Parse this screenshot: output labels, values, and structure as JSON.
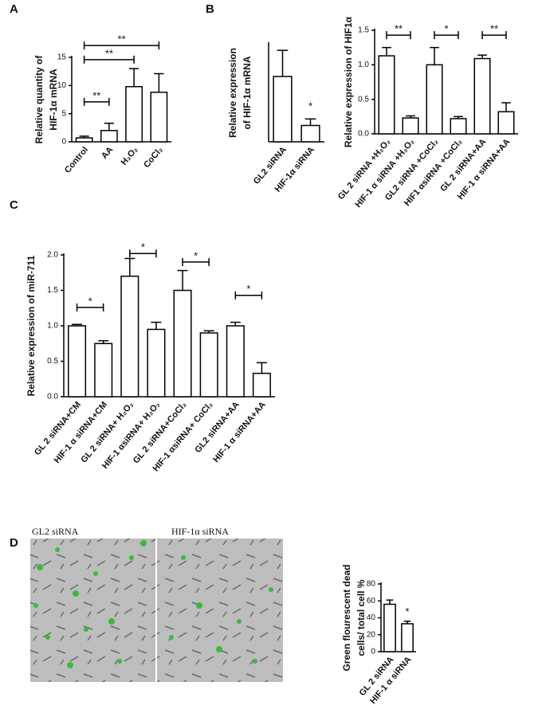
{
  "chart_data": [
    {
      "type": "bar",
      "label": "A",
      "ylabel": [
        "Relative quantity of",
        "HIF-1α mRNA"
      ],
      "categories": [
        "Control",
        "AA",
        "H₂O₂",
        "CoCl₂"
      ],
      "values": [
        0.7,
        2,
        9.8,
        8.8
      ],
      "errors": [
        0.3,
        1.3,
        3.2,
        3.3
      ],
      "color": "#ffffff",
      "ylim": [
        0,
        15
      ],
      "yticks": [
        0,
        5,
        10,
        15
      ],
      "annotations": [
        {
          "text": "**"
        },
        {
          "text": "**"
        },
        {
          "text": "**"
        }
      ]
    },
    {
      "type": "bar",
      "label": "B",
      "ylabel": [
        "Relative expression",
        "of HIF-1α mRNA"
      ],
      "categories": [
        "GL2 siRNA",
        "HIF-1α siRNA"
      ],
      "values": [
        1.0,
        0.25
      ],
      "errors": [
        0.4,
        0.1
      ],
      "color": "#ffffff",
      "ylim": [
        0,
        1.5
      ],
      "annotations": [
        {
          "text": "*"
        }
      ]
    },
    {
      "type": "bar",
      "ylabel": [
        "Relative  expression of HIF1α"
      ],
      "categories": [
        "GL 2 siRNA +H₂O₂",
        "HIF-1 α siRNA +H₂O₂",
        "GL2 siRNA +CoCl₂",
        "HIF1 αsiRNA +CoCl₂",
        "GL 2 siRNA+AA",
        "HIF-1 α siRNA+AA"
      ],
      "values": [
        1.13,
        0.23,
        1.0,
        0.22,
        1.09,
        0.32
      ],
      "errors": [
        0.12,
        0.03,
        0.25,
        0.03,
        0.05,
        0.13
      ],
      "color": "#ffffff",
      "ylim": [
        0,
        1.5
      ],
      "yticks": [
        {
          "value": 0,
          "label": "0.0"
        },
        {
          "value": 0.5,
          "label": "0.5"
        },
        {
          "value": 1,
          "label": "1.0"
        },
        {
          "value": 1.5,
          "label": "1.5"
        }
      ],
      "annotations": [
        {
          "text": "**"
        },
        {
          "text": "*"
        },
        {
          "text": "**"
        }
      ]
    },
    {
      "type": "bar",
      "label": "C",
      "ylabel": [
        "Relative expression of miR-711"
      ],
      "categories": [
        "GL 2 siRNA+CM",
        "HIF-1 α siRNA+CM",
        "GL 2 siRNA+ H₂O₂",
        "HIF-1 αsiRNA+ H₂O₂",
        "GL 2 siRNA+CoCl₂",
        "HIF-1 αsiRNA+ CoCl₂",
        "GL2 siRNA+AA",
        "HIF-1 α siRNA+AA"
      ],
      "values": [
        1.0,
        0.75,
        1.7,
        0.95,
        1.5,
        0.9,
        1.0,
        0.33
      ],
      "errors": [
        0.02,
        0.04,
        0.25,
        0.1,
        0.28,
        0.03,
        0.05,
        0.15
      ],
      "color": "#ffffff",
      "ylim": [
        0,
        2
      ],
      "yticks": [
        {
          "value": 0,
          "label": "0.0"
        },
        {
          "value": 0.5,
          "label": "0.5"
        },
        {
          "value": 1,
          "label": "1.0"
        },
        {
          "value": 1.5,
          "label": "1.5"
        },
        {
          "value": 2,
          "label": "2.0"
        }
      ],
      "annotations": [
        {
          "text": "*"
        },
        {
          "text": "*"
        },
        {
          "text": "*"
        },
        {
          "text": "*"
        }
      ]
    },
    {
      "type": "bar",
      "label": "D",
      "images": [
        "GL2 siRNA",
        "HIF-1α siRNA"
      ],
      "ylabel": [
        "Green flourescent dead",
        "cells/ total cell %"
      ],
      "categories": [
        "GL 2 siRNA",
        "HIF-1 α siRNA"
      ],
      "values": [
        56,
        33
      ],
      "errors": [
        5,
        3
      ],
      "color": "#ffffff",
      "ylim": [
        0,
        80
      ],
      "yticks": [
        0,
        20,
        40,
        60,
        80
      ],
      "annotations": [
        {
          "text": "*"
        }
      ]
    }
  ]
}
